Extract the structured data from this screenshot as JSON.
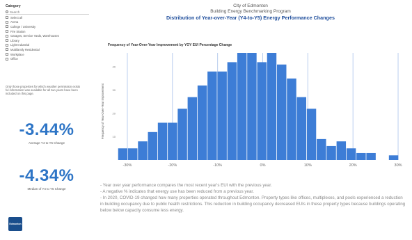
{
  "filter": {
    "title": "Category",
    "search_placeholder": "Search",
    "items": [
      {
        "label": "Select all"
      },
      {
        "label": "Arena"
      },
      {
        "label": "College / University"
      },
      {
        "label": "Fire Station"
      },
      {
        "label": "Garages, Service Yards, Warehouses"
      },
      {
        "label": "Library"
      },
      {
        "label": "Light Industrial"
      },
      {
        "label": "Multifamily Residential"
      },
      {
        "label": "Workplace"
      },
      {
        "label": "Office"
      }
    ]
  },
  "note": "Only those properties for which weather permission exists ful information was available for all two years have been included on this page.",
  "kpis": {
    "average": {
      "value": "-3.44%",
      "label": "Average Y4 to Y5 Change"
    },
    "median": {
      "value": "-4.34%",
      "label": "Median of Y4 to Y5 Change"
    }
  },
  "header": {
    "org": "City of Edmonton",
    "program": "Building Energy Benchmarking Program",
    "title": "Distribution of Year-over-Year (Y4-to-Y5) Energy Performance Changes"
  },
  "logo": {
    "text": "Edmonton"
  },
  "chart_data": {
    "type": "bar",
    "title": "Frequency of Year-Over-Year Improvement by YOY EUI Percentage Change",
    "ylabel": "Frequency of Year-Over-Year Improvement",
    "xlabel": "",
    "x_ticks": [
      {
        "value": -30,
        "label": "-30%"
      },
      {
        "value": -20,
        "label": "-20%"
      },
      {
        "value": -10,
        "label": "-10%"
      },
      {
        "value": 0,
        "label": "0%"
      },
      {
        "value": 10,
        "label": "10%"
      },
      {
        "value": 20,
        "label": "20%"
      },
      {
        "value": 30,
        "label": "30%"
      }
    ],
    "y_ticks": [
      {
        "value": 0,
        "label": "0"
      },
      {
        "value": 10,
        "label": "10"
      },
      {
        "value": 20,
        "label": "20"
      },
      {
        "value": 30,
        "label": "30"
      },
      {
        "value": 40,
        "label": "40"
      }
    ],
    "xlim": [
      -32,
      32
    ],
    "ylim": [
      0,
      46
    ],
    "bin_width": 2.2,
    "bins": [
      {
        "x": -31,
        "value": 5
      },
      {
        "x": -28.8,
        "value": 5
      },
      {
        "x": -26.6,
        "value": 8
      },
      {
        "x": -24.4,
        "value": 12
      },
      {
        "x": -22.2,
        "value": 16
      },
      {
        "x": -20,
        "value": 16
      },
      {
        "x": -17.8,
        "value": 22
      },
      {
        "x": -15.6,
        "value": 27
      },
      {
        "x": -13.4,
        "value": 32
      },
      {
        "x": -11.2,
        "value": 38
      },
      {
        "x": -9,
        "value": 38
      },
      {
        "x": -6.8,
        "value": 42
      },
      {
        "x": -4.6,
        "value": 46
      },
      {
        "x": -2.4,
        "value": 46
      },
      {
        "x": -0.2,
        "value": 42
      },
      {
        "x": 2,
        "value": 46
      },
      {
        "x": 4.2,
        "value": 41
      },
      {
        "x": 6.4,
        "value": 35
      },
      {
        "x": 8.6,
        "value": 27
      },
      {
        "x": 10.8,
        "value": 22
      },
      {
        "x": 13,
        "value": 9
      },
      {
        "x": 15.2,
        "value": 6
      },
      {
        "x": 17.4,
        "value": 8
      },
      {
        "x": 19.6,
        "value": 5
      },
      {
        "x": 21.8,
        "value": 3
      },
      {
        "x": 24,
        "value": 3
      },
      {
        "x": 29,
        "value": 2
      }
    ],
    "bar_color": "#3d7dd6",
    "gridline_color": "#b8cdee",
    "grid": true
  },
  "bullets": [
    "- Year over year performance compares the most recent year's EUI with the previous year.",
    "- A negative % indicates that energy use has been reduced from a previous year.",
    "- In 2020, COVID-19 changed how many properties operated throughout Edmonton. Property types like offices, multiplexes, and pools experienced a reduction in building occupancy due to public health restrictions. This reduction in building occupancy decreased EUIs in these property types because buildings operating below below capacity consume less energy."
  ]
}
